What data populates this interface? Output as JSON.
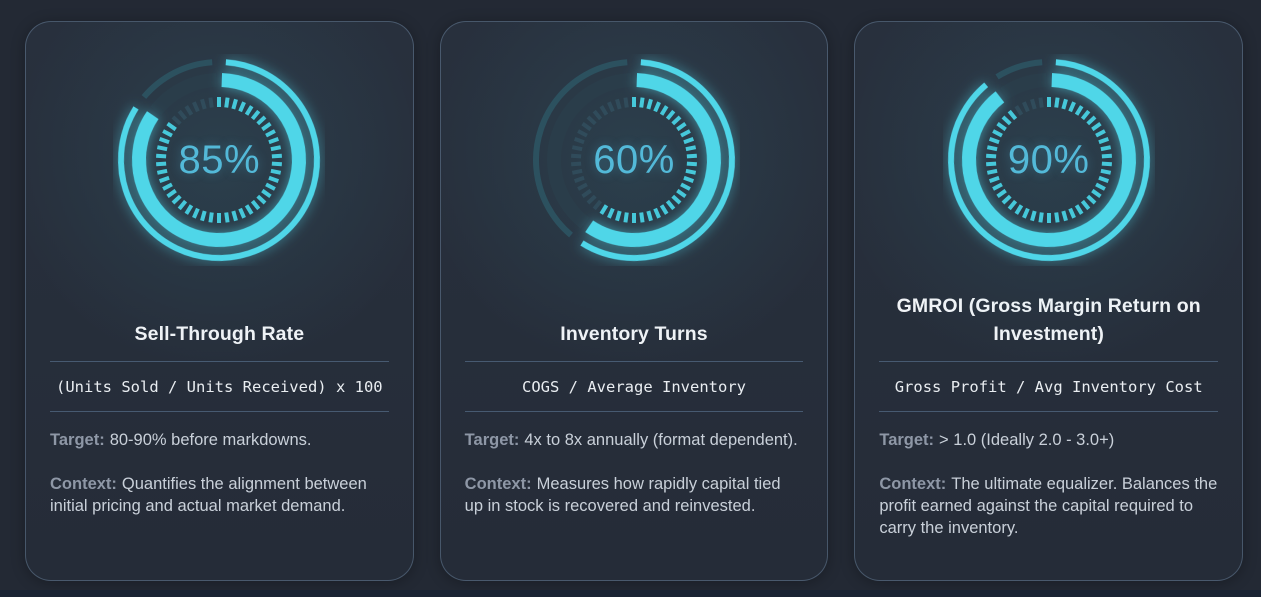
{
  "colors": {
    "gauge_bright": "#4fd6e8",
    "gauge_outer_dim": "#2c515f",
    "gauge_main_dim": "#2a3d4a",
    "tick_bright": "#46c8da",
    "tick_dim": "rgba(80,160,185,0.16)",
    "value_text": "#53b9d8",
    "card_background": "#262e3a",
    "page_background": "#232934"
  },
  "cards": [
    {
      "gauge": {
        "percent": 85,
        "label": "85%"
      },
      "title": "Sell-Through Rate",
      "formula": "(Units Sold / Units Received) x 100",
      "target_label": "Target:",
      "target": "80-90% before markdowns.",
      "context_label": "Context:",
      "context": "Quantifies the alignment between initial pricing and actual market demand."
    },
    {
      "gauge": {
        "percent": 60,
        "label": "60%"
      },
      "title": "Inventory Turns",
      "formula": "COGS / Average Inventory",
      "target_label": "Target:",
      "target": "4x to 8x annually (format dependent).",
      "context_label": "Context:",
      "context": "Measures how rapidly capital tied up in stock is recovered and reinvested."
    },
    {
      "gauge": {
        "percent": 90,
        "label": "90%"
      },
      "title": "GMROI (Gross Margin Return on Investment)",
      "formula": "Gross Profit / Avg Inventory Cost",
      "target_label": "Target:",
      "target": "> 1.0 (Ideally 2.0 - 3.0+)",
      "context_label": "Context:",
      "context": "The ultimate equalizer. Balances the profit earned against the capital required to carry the inventory."
    }
  ],
  "chart_data": [
    {
      "type": "pie",
      "variant": "radial-gauge",
      "title": "Sell-Through Rate",
      "values": [
        85,
        15
      ],
      "labels": [
        "filled",
        "remaining"
      ],
      "center_label": "85%",
      "value": 85,
      "max": 100
    },
    {
      "type": "pie",
      "variant": "radial-gauge",
      "title": "Inventory Turns",
      "values": [
        60,
        40
      ],
      "labels": [
        "filled",
        "remaining"
      ],
      "center_label": "60%",
      "value": 60,
      "max": 100
    },
    {
      "type": "pie",
      "variant": "radial-gauge",
      "title": "GMROI (Gross Margin Return on Investment)",
      "values": [
        90,
        10
      ],
      "labels": [
        "filled",
        "remaining"
      ],
      "center_label": "90%",
      "value": 90,
      "max": 100
    }
  ]
}
